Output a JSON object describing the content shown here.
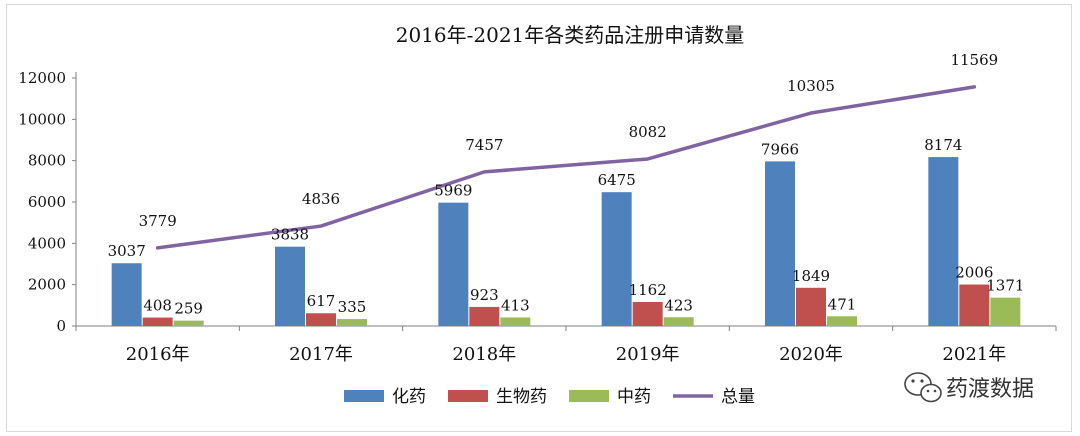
{
  "chart_data": {
    "type": "bar",
    "title": "2016年-2021年各类药品注册申请数量",
    "categories": [
      "2016年",
      "2017年",
      "2018年",
      "2019年",
      "2020年",
      "2021年"
    ],
    "series": [
      {
        "name": "化药",
        "kind": "bar",
        "color": "#4f81bd",
        "values": [
          3037,
          3838,
          5969,
          6475,
          7966,
          8174
        ]
      },
      {
        "name": "生物药",
        "kind": "bar",
        "color": "#c0504d",
        "values": [
          408,
          617,
          923,
          1162,
          1849,
          2006
        ]
      },
      {
        "name": "中药",
        "kind": "bar",
        "color": "#9bbb59",
        "values": [
          259,
          335,
          413,
          423,
          471,
          1371
        ]
      },
      {
        "name": "总量",
        "kind": "line",
        "color": "#8064a2",
        "values": [
          3779,
          4836,
          7457,
          8082,
          10305,
          11569
        ]
      }
    ],
    "y_ticks": [
      "0",
      "2000",
      "4000",
      "6000",
      "8000",
      "10000",
      "12000"
    ],
    "ylim": [
      0,
      12000
    ],
    "grid": false,
    "legend_position": "bottom"
  },
  "watermark": {
    "icon": "wechat-icon",
    "text": "药渡数据"
  }
}
